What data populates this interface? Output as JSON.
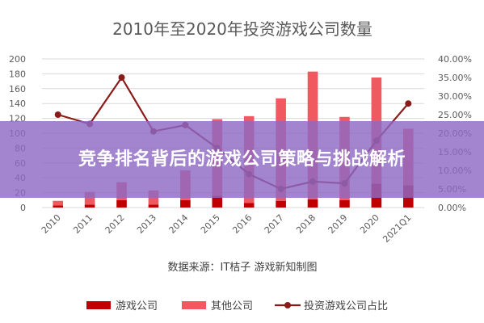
{
  "chart_data": {
    "type": "bar",
    "title": "2010年至2020年投资游戏公司数量",
    "categories": [
      "2010",
      "2011",
      "2012",
      "2013",
      "2014",
      "2015",
      "2016",
      "2017",
      "2018",
      "2019",
      "2020",
      "2021Q1"
    ],
    "series": [
      {
        "name": "游戏公司",
        "type": "bar",
        "axis": "left",
        "color": "#c00000",
        "values": [
          3,
          4,
          10,
          4,
          10,
          16,
          6,
          9,
          11,
          10,
          32,
          30
        ]
      },
      {
        "name": "其他公司",
        "type": "bar",
        "axis": "left",
        "color": "#f0595f",
        "values": [
          6,
          17,
          24,
          19,
          40,
          103,
          117,
          138,
          172,
          112,
          143,
          76
        ]
      },
      {
        "name": "投资游戏公司占比",
        "type": "line",
        "axis": "right",
        "color": "#8b1a1a",
        "values": [
          0.25,
          0.225,
          0.35,
          0.205,
          0.222,
          0.16,
          0.09,
          0.05,
          0.07,
          0.065,
          0.18,
          0.28
        ]
      }
    ],
    "ylim_left": [
      0,
      200
    ],
    "yticks_left": [
      "0",
      "20",
      "40",
      "60",
      "80",
      "100",
      "120",
      "140",
      "160",
      "180",
      "200"
    ],
    "ylim_right": [
      0,
      0.4
    ],
    "yticks_right": [
      "0.00%",
      "5.00%",
      "10.00%",
      "15.00%",
      "20.00%",
      "25.00%",
      "30.00%",
      "35.00%",
      "40.00%"
    ],
    "source": "数据来源：IT桔子 游戏新知制图",
    "legend_position": "bottom",
    "grid": true
  },
  "banner": {
    "title": "竞争排名背后的游戏公司策略与挑战解析"
  }
}
